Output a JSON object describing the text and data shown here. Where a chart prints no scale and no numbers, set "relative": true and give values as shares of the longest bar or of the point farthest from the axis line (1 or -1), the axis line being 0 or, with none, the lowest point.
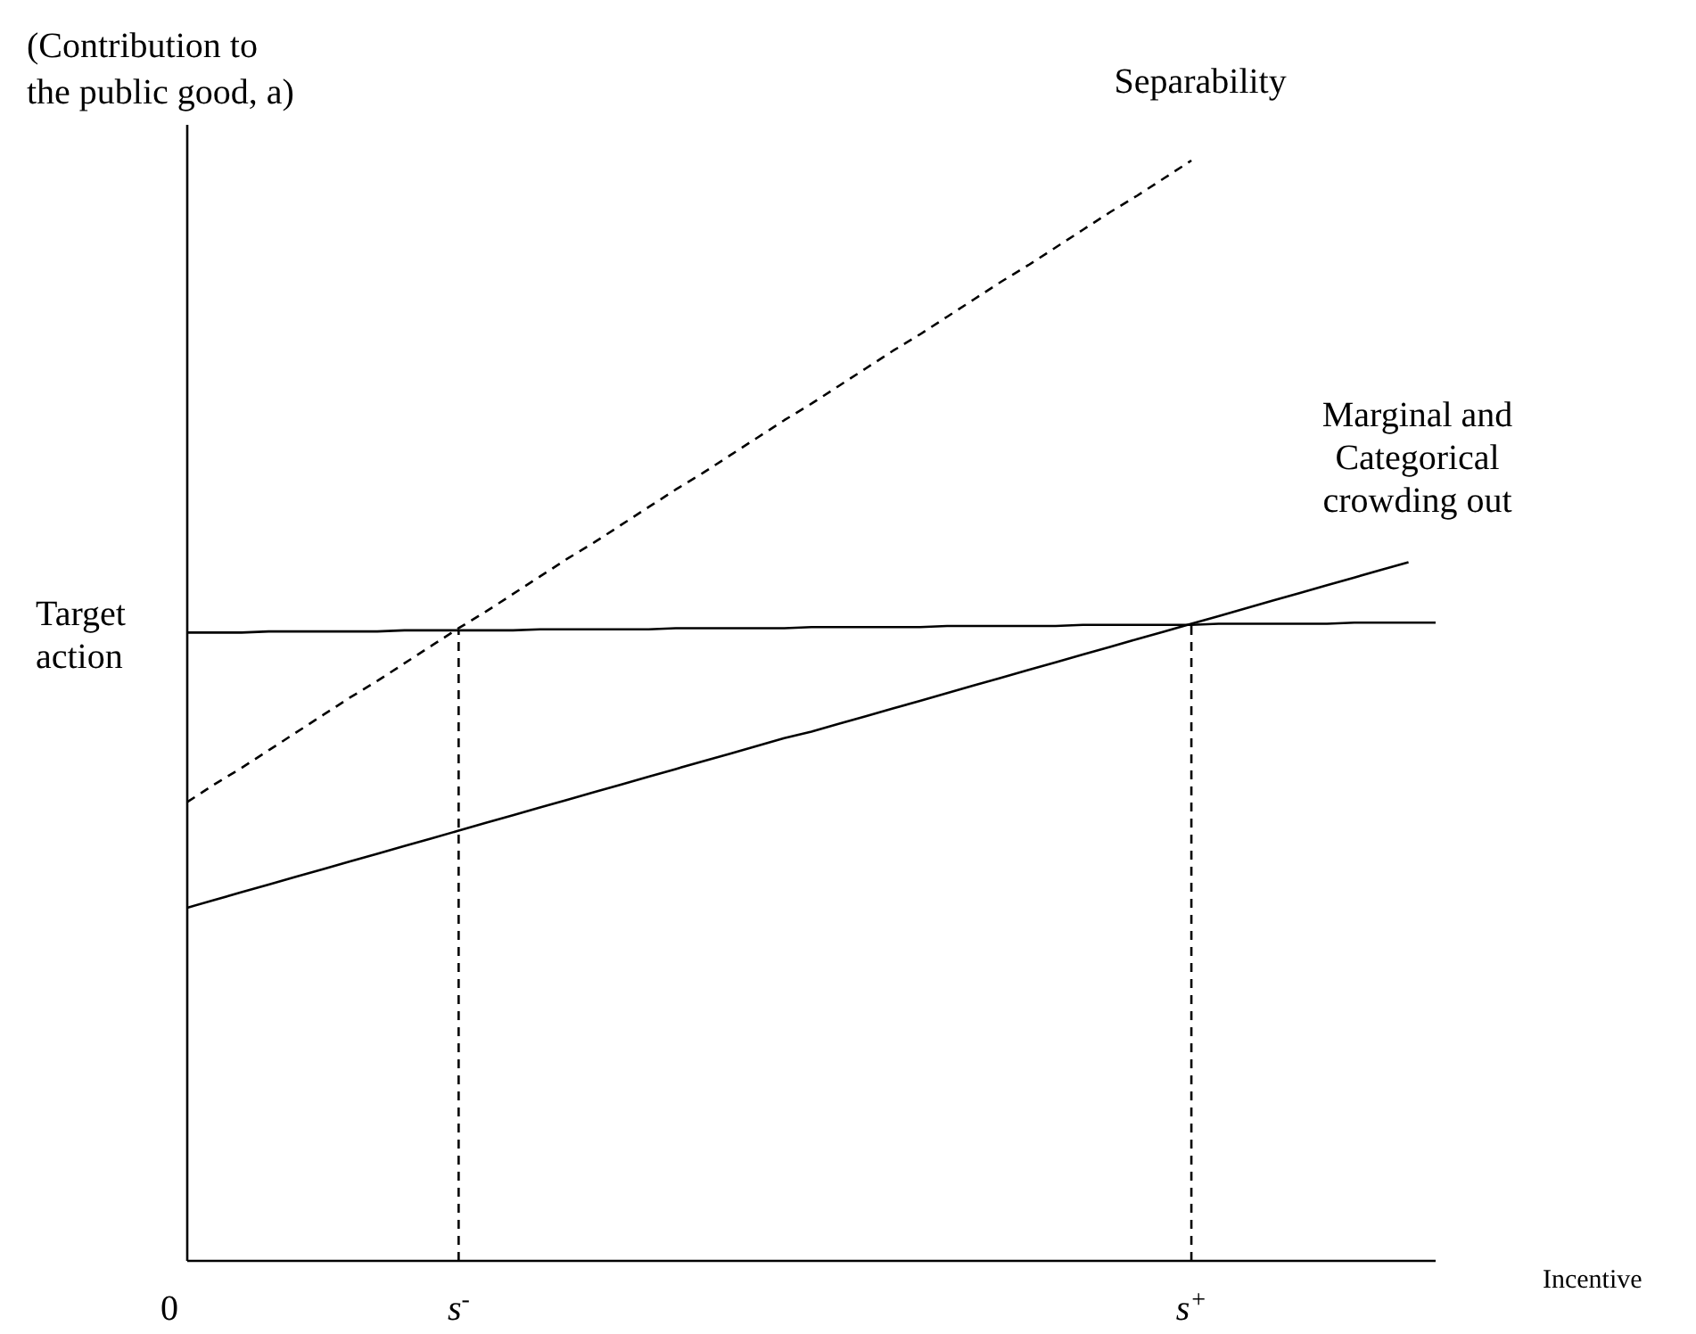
{
  "chart_data": {
    "type": "line",
    "relative": true,
    "ylabel": "(Contribution to the public good, a)",
    "xlabel": "Incentive",
    "categories": [
      "0",
      null,
      null,
      null,
      null,
      null,
      null,
      null,
      null,
      null,
      "s$^{-}$",
      null,
      null,
      null,
      null,
      null,
      null,
      null,
      null,
      null,
      null,
      null,
      null,
      null,
      null,
      null,
      null,
      null,
      null,
      null,
      null,
      null,
      null,
      null,
      null,
      null,
      null,
      "s$^{+}$",
      null,
      null,
      null,
      null,
      null,
      null,
      null,
      null,
      null
    ],
    "grid": false,
    "legend": false,
    "marker": "none",
    "series": [
      {
        "name": "Separability",
        "color": "#000000",
        "line_style": "dashed",
        "values": [
          0.417,
          0.433,
          0.448,
          0.464,
          0.48,
          0.496,
          0.512,
          0.527,
          0.543,
          0.559,
          0.575,
          0.59,
          0.606,
          0.622,
          0.638,
          0.653,
          0.669,
          0.685,
          0.701,
          0.716,
          0.732,
          0.748,
          0.764,
          0.779,
          0.795,
          0.811,
          0.827,
          0.842,
          0.858,
          0.874,
          0.89,
          0.905,
          0.921,
          0.937,
          0.953,
          0.968,
          0.984,
          1.0,
          null,
          null,
          null,
          null,
          null,
          null,
          null,
          null,
          null
        ]
      },
      {
        "name": "Marginal and Categorical crowding out",
        "color": "#000000",
        "line_style": "solid",
        "values": [
          0.321,
          0.328,
          0.335,
          0.342,
          0.349,
          0.356,
          0.363,
          0.37,
          0.377,
          0.384,
          0.391,
          0.398,
          0.405,
          0.412,
          0.419,
          0.426,
          0.433,
          0.44,
          0.447,
          0.454,
          0.461,
          0.468,
          0.475,
          0.481,
          0.488,
          0.495,
          0.502,
          0.509,
          0.516,
          0.523,
          0.53,
          0.537,
          0.544,
          0.551,
          0.558,
          0.565,
          0.572,
          0.579,
          0.586,
          0.593,
          0.6,
          0.607,
          0.614,
          0.621,
          0.628,
          0.635,
          null
        ]
      },
      {
        "name": "Target action",
        "color": "#000000",
        "line_style": "solid",
        "values": [
          0.571,
          0.571,
          0.571,
          0.572,
          0.572,
          0.572,
          0.572,
          0.572,
          0.573,
          0.573,
          0.573,
          0.573,
          0.573,
          0.574,
          0.574,
          0.574,
          0.574,
          0.574,
          0.575,
          0.575,
          0.575,
          0.575,
          0.575,
          0.576,
          0.576,
          0.576,
          0.576,
          0.576,
          0.577,
          0.577,
          0.577,
          0.577,
          0.577,
          0.578,
          0.578,
          0.578,
          0.578,
          0.578,
          0.579,
          0.579,
          0.579,
          0.579,
          0.579,
          0.58,
          0.58,
          0.58,
          0.58
        ]
      },
      {
        "color": "#000000",
        "line_style": "dashed",
        "x": [
          "s$^{-}$",
          "s$^{-}$"
        ],
        "values": [
          0,
          0.573
        ]
      },
      {
        "color": "#000000",
        "line_style": "dashed",
        "x": [
          "s$^{+}$",
          "s$^{+}$"
        ],
        "values": [
          0,
          0.578
        ]
      }
    ]
  }
}
